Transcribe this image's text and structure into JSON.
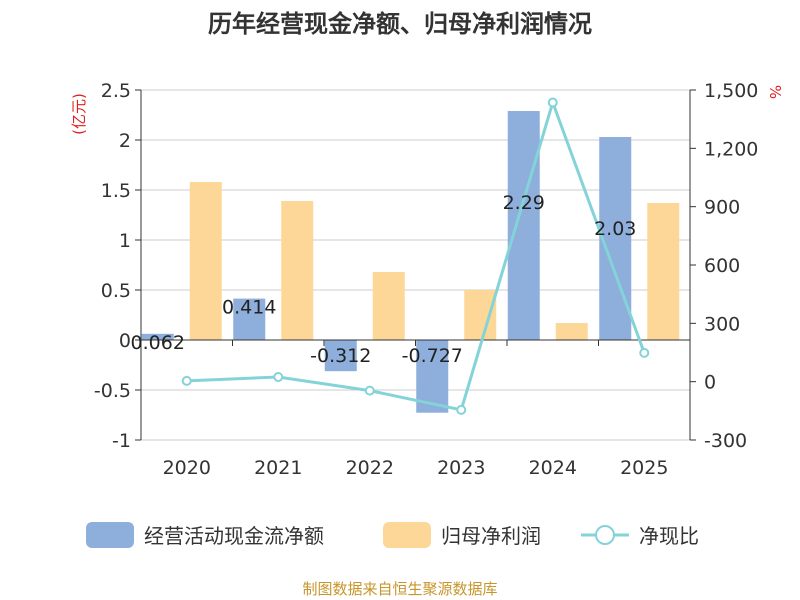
{
  "title": "历年经营现金净额、归母净利润情况",
  "source": "制图数据来自恒生聚源数据库",
  "colors": {
    "cash": "#8eaedb",
    "profit": "#fdd797",
    "ratio": "#84d3d8",
    "axis": "#333333",
    "grid": "#cccccc",
    "unit": "#e02020",
    "source": "#c8952a"
  },
  "chart_data": {
    "type": "bar+line",
    "categories": [
      "2020",
      "2021",
      "2022",
      "2023",
      "2024",
      "2025"
    ],
    "left_axis": {
      "unit_label": "(亿元)",
      "range": [
        -1,
        2.5
      ],
      "ticks": [
        -1,
        -0.5,
        0,
        0.5,
        1,
        1.5,
        2,
        2.5
      ],
      "tick_labels": [
        "-1",
        "-0.5",
        "0",
        "0.5",
        "1",
        "1.5",
        "2",
        "2.5"
      ]
    },
    "right_axis": {
      "unit_label": "%",
      "range": [
        -300,
        1500
      ],
      "ticks": [
        -300,
        0,
        300,
        600,
        900,
        1200,
        1500
      ],
      "tick_labels": [
        "-300",
        "0",
        "300",
        "600",
        "900",
        "1,200",
        "1,500"
      ]
    },
    "grid": true,
    "legend_position": "bottom",
    "series": [
      {
        "name": "经营活动现金流净额",
        "kind": "bar",
        "axis": "left",
        "values": [
          0.062,
          0.414,
          -0.312,
          -0.727,
          2.29,
          2.03
        ],
        "labels": [
          "0.062",
          "0.414",
          "-0.312",
          "-0.727",
          "2.29",
          "2.03"
        ]
      },
      {
        "name": "归母净利润",
        "kind": "bar",
        "axis": "left",
        "values": [
          1.58,
          1.39,
          0.68,
          0.5,
          0.17,
          1.37
        ]
      },
      {
        "name": "净现比",
        "kind": "line",
        "axis": "right",
        "values": [
          4,
          24,
          -46,
          -145,
          1436,
          148
        ]
      }
    ]
  }
}
